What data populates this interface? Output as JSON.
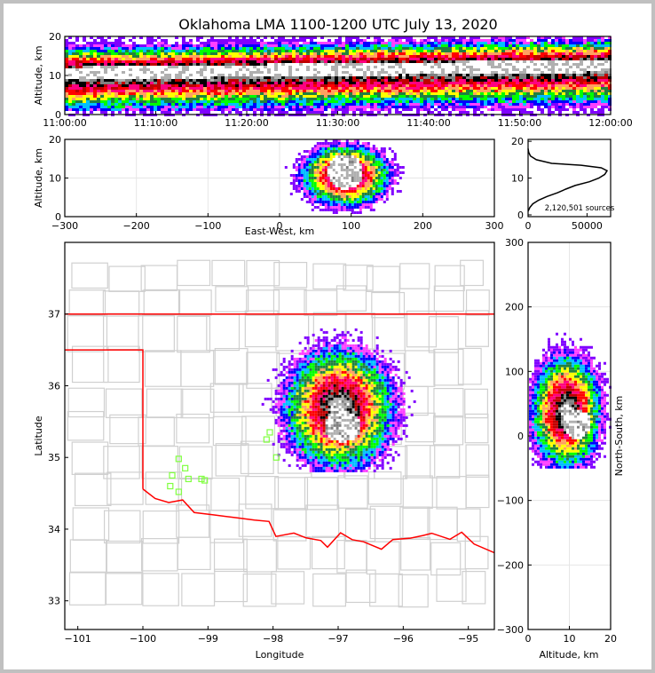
{
  "title": "Oklahoma LMA 1100-1200 UTC July 13, 2020",
  "colors": {
    "state_border": "#ff0000",
    "county": "#d0d0d0",
    "stations": "#80ff40",
    "grid": "#e6e6e6"
  },
  "chart_data": [
    {
      "id": "time-height",
      "type": "heatmap",
      "xlabel": "",
      "ylabel": "Altitude, km",
      "xticks": [
        "11:00:00",
        "11:10:00",
        "11:20:00",
        "11:30:00",
        "11:40:00",
        "11:50:00",
        "12:00:00"
      ],
      "yticks": [
        "0",
        "10",
        "20"
      ],
      "ylim": [
        0,
        20
      ],
      "core_altitude_km": [
        10,
        13
      ],
      "description_bands": "density peak near 10-13 km"
    },
    {
      "id": "east-west-altitude",
      "type": "heatmap",
      "xlabel": "East-West, km",
      "ylabel": "Altitude, km",
      "xlim": [
        -300,
        300
      ],
      "ylim": [
        0,
        20
      ],
      "xticks": [
        "−300",
        "−200",
        "−100",
        "0",
        "100",
        "200",
        "300"
      ],
      "yticks": [
        "0",
        "10",
        "20"
      ],
      "core_center": [
        90,
        12
      ]
    },
    {
      "id": "altitude-histogram",
      "type": "line",
      "annotation": "2,120,501 sources",
      "xlim": [
        0,
        70000
      ],
      "ylim": [
        0,
        21
      ],
      "xticks": [
        "0",
        "50000"
      ],
      "yticks": [
        "0",
        "10",
        "20"
      ],
      "x": [
        0,
        1500,
        4000,
        9000,
        16000,
        25000,
        32000,
        40000,
        52000,
        60000,
        65000,
        67000,
        62000,
        45000,
        20000,
        7000,
        2000,
        500,
        0
      ],
      "y": [
        1,
        2,
        3,
        4,
        5,
        6,
        7,
        8,
        9,
        10,
        11,
        12,
        12.8,
        13.5,
        14,
        15,
        16,
        17,
        18
      ]
    },
    {
      "id": "plan-view",
      "type": "heatmap",
      "xlabel": "Longitude",
      "ylabel": "Latitude",
      "xlim": [
        -101.2,
        -94.6
      ],
      "ylim": [
        32.6,
        38.0
      ],
      "xticks": [
        "−101",
        "−100",
        "−99",
        "−98",
        "−97",
        "−96",
        "−95"
      ],
      "yticks": [
        "33",
        "34",
        "35",
        "36",
        "37"
      ],
      "core_center": [
        -97.0,
        35.5
      ],
      "stations": [
        [
          -99.45,
          34.98
        ],
        [
          -99.35,
          34.85
        ],
        [
          -99.55,
          34.75
        ],
        [
          -99.3,
          34.7
        ],
        [
          -99.58,
          34.6
        ],
        [
          -99.45,
          34.52
        ],
        [
          -99.1,
          34.7
        ],
        [
          -99.05,
          34.68
        ],
        [
          -98.05,
          35.35
        ],
        [
          -98.1,
          35.25
        ],
        [
          -97.95,
          35.0
        ]
      ]
    },
    {
      "id": "north-south-altitude",
      "type": "heatmap",
      "xlabel": "Altitude, km",
      "ylabel": "North-South, km",
      "xlim": [
        0,
        20
      ],
      "ylim": [
        -300,
        300
      ],
      "xticks": [
        "0",
        "10",
        "20"
      ],
      "yticks": [
        "−300",
        "−200",
        "−100",
        "0",
        "100",
        "200",
        "300"
      ],
      "core_center": [
        10,
        20
      ]
    }
  ]
}
